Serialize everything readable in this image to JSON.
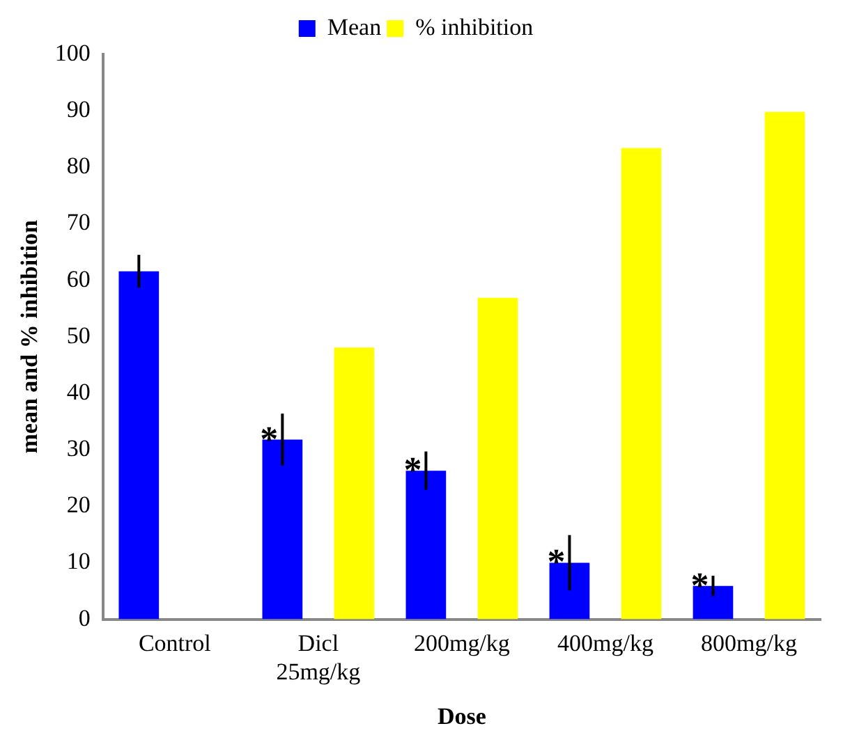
{
  "chart_data": {
    "type": "bar",
    "xlabel": "Dose",
    "ylabel": "mean and % inhibition",
    "categories": [
      "Control",
      "Dicl 25mg/kg",
      "200mg/kg",
      "400mg/kg",
      "800mg/kg"
    ],
    "series": [
      {
        "name": "Mean",
        "color": "#0000ff",
        "values": [
          61.6,
          31.8,
          26.3,
          10.0,
          5.9
        ],
        "errors": [
          2.9,
          4.6,
          3.4,
          4.9,
          1.8
        ],
        "value_labels": [
          null,
          "*",
          "*",
          "*",
          "*"
        ]
      },
      {
        "name": "% inhibition",
        "color": "#ffff00",
        "values": [
          null,
          48.1,
          56.9,
          83.4,
          89.8
        ]
      }
    ],
    "ylim": [
      0,
      100
    ],
    "yticks": [
      0,
      10,
      20,
      30,
      40,
      50,
      60,
      70,
      80,
      90,
      100
    ],
    "grid": false,
    "legend": "top"
  }
}
